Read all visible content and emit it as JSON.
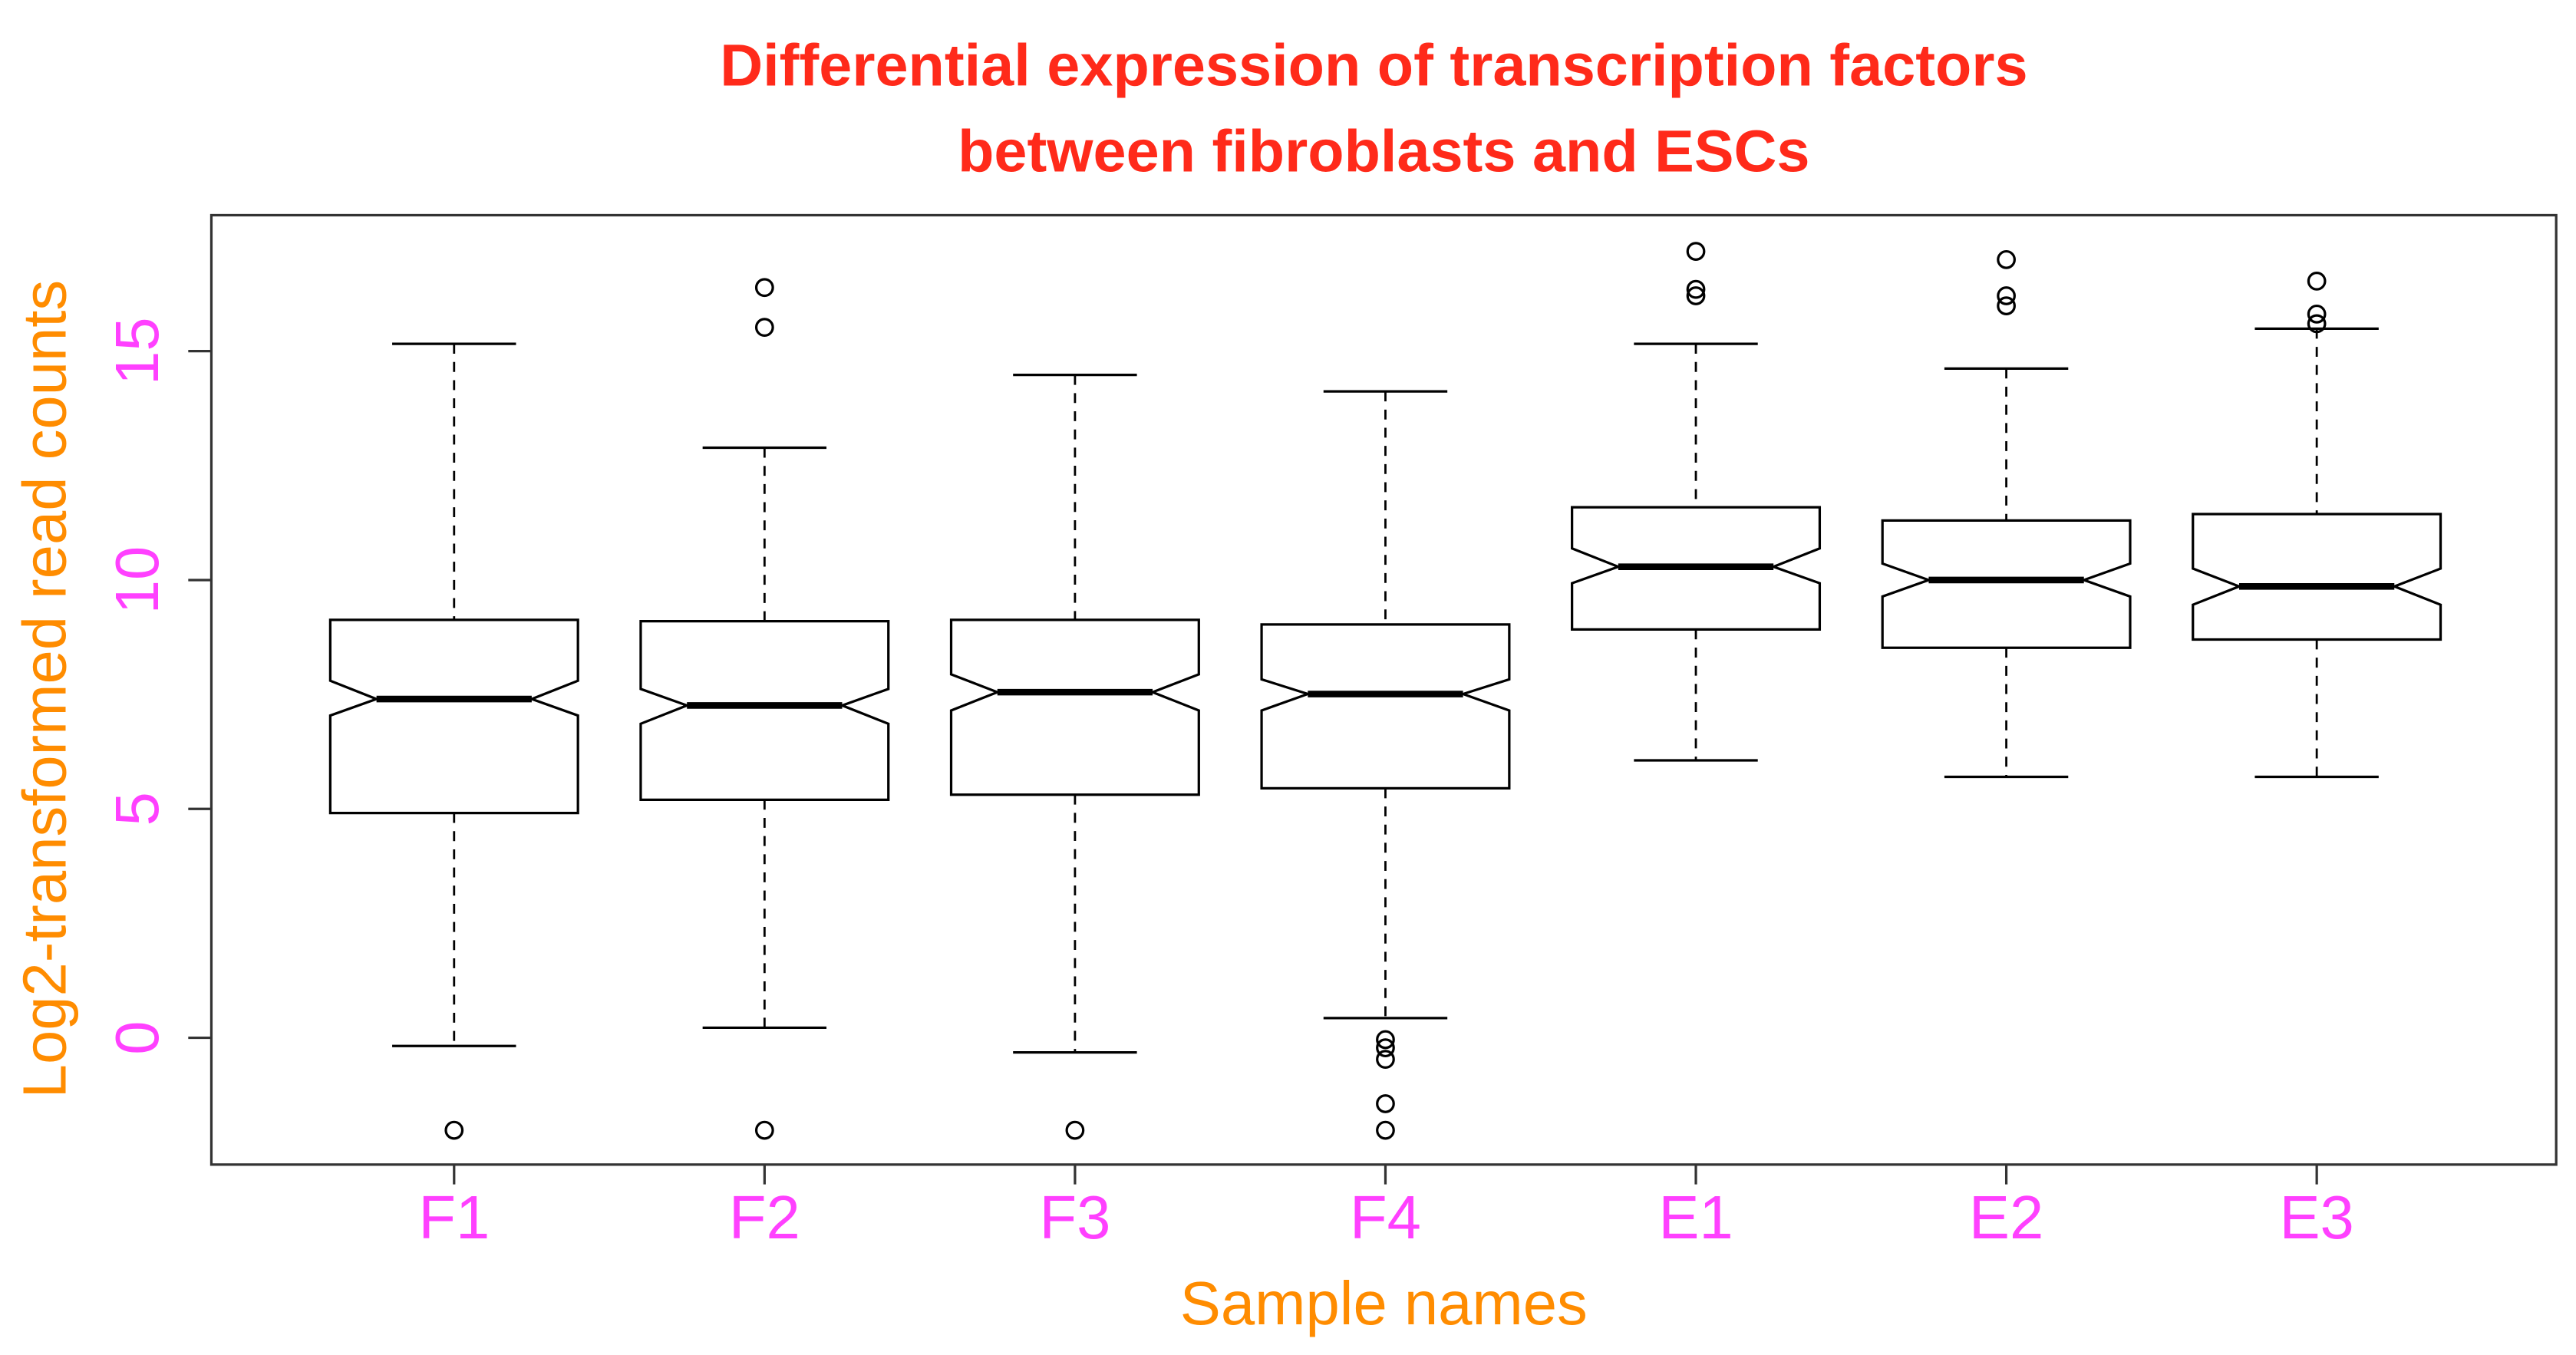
{
  "chart_data": {
    "type": "boxplot",
    "title": [
      "Differential expression of transcription factors",
      "between fibroblasts and ESCs"
    ],
    "title_color": "#ff2a1a",
    "x_label": "Sample names",
    "y_label": "Log2-transformed read counts",
    "axis_label_color": "#ff8c00",
    "tick_label_color": "#ff40ff",
    "box_color": "#000000",
    "notch": true,
    "categories": [
      "F1",
      "F2",
      "F3",
      "F4",
      "E1",
      "E2",
      "E3"
    ],
    "boxes": [
      {
        "whisker_low": -0.18,
        "q1": 4.91,
        "notch_low": 7.04,
        "median": 7.4,
        "notch_high": 7.8,
        "q3": 9.13,
        "whisker_high": 15.16,
        "outliers": [
          -2.02
        ]
      },
      {
        "whisker_low": 0.22,
        "q1": 5.2,
        "notch_low": 6.86,
        "median": 7.26,
        "notch_high": 7.62,
        "q3": 9.1,
        "whisker_high": 12.89,
        "outliers": [
          -2.02,
          15.52,
          16.39
        ]
      },
      {
        "whisker_low": -0.32,
        "q1": 5.31,
        "notch_low": 7.15,
        "median": 7.55,
        "notch_high": 7.94,
        "q3": 9.13,
        "whisker_high": 14.48,
        "outliers": [
          -2.02
        ]
      },
      {
        "whisker_low": 0.43,
        "q1": 5.45,
        "notch_low": 7.15,
        "median": 7.51,
        "notch_high": 7.83,
        "q3": 9.03,
        "whisker_high": 14.12,
        "outliers": [
          -2.02,
          -1.44,
          -0.47,
          -0.22,
          -0.04
        ]
      },
      {
        "whisker_low": 6.06,
        "q1": 8.92,
        "notch_low": 9.93,
        "median": 10.29,
        "notch_high": 10.69,
        "q3": 11.59,
        "whisker_high": 15.16,
        "outliers": [
          16.21,
          16.35,
          17.18
        ]
      },
      {
        "whisker_low": 5.7,
        "q1": 8.52,
        "notch_low": 9.64,
        "median": 10.0,
        "notch_high": 10.36,
        "q3": 11.3,
        "whisker_high": 14.62,
        "outliers": [
          15.99,
          16.21,
          17.0
        ]
      },
      {
        "whisker_low": 5.7,
        "q1": 8.7,
        "notch_low": 9.46,
        "median": 9.86,
        "notch_high": 10.25,
        "q3": 11.44,
        "whisker_high": 15.49,
        "outliers": [
          15.6,
          15.81,
          16.53
        ]
      }
    ],
    "ylim": [
      -2.77,
      17.97
    ],
    "yticks": [
      0,
      5,
      10,
      15
    ]
  }
}
